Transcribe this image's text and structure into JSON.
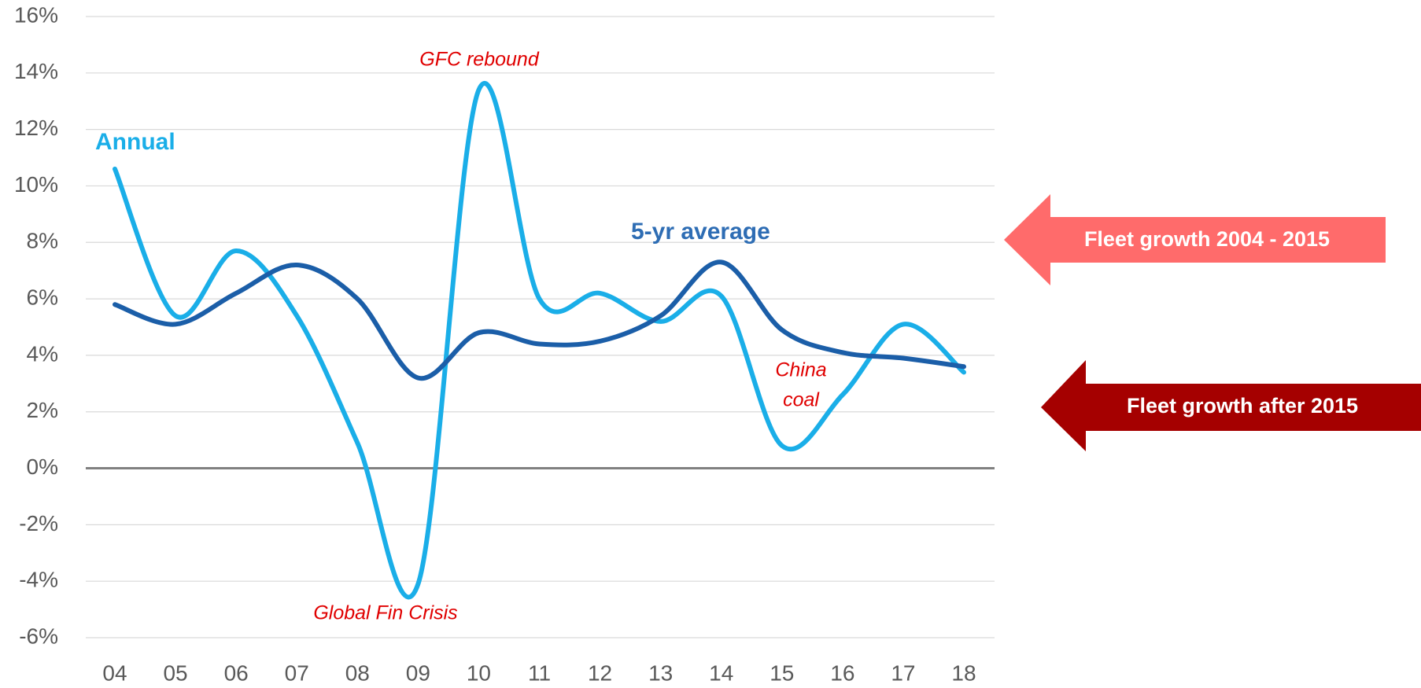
{
  "chart_data": {
    "type": "line",
    "categories": [
      "04",
      "05",
      "06",
      "07",
      "08",
      "09",
      "10",
      "11",
      "12",
      "13",
      "14",
      "15",
      "16",
      "17",
      "18"
    ],
    "series": [
      {
        "name": "Annual",
        "color": "#1aaee8",
        "values": [
          10.6,
          5.4,
          7.7,
          5.4,
          0.9,
          -4.1,
          13.4,
          6.0,
          6.2,
          5.2,
          6.1,
          0.8,
          2.6,
          5.1,
          3.4
        ]
      },
      {
        "name": "5-yr average",
        "color": "#1b5ea8",
        "values": [
          5.8,
          5.1,
          6.2,
          7.2,
          6.0,
          3.2,
          4.8,
          4.4,
          4.5,
          5.4,
          7.3,
          4.9,
          4.1,
          3.9,
          3.6
        ]
      }
    ],
    "ylim": [
      -6,
      16
    ],
    "yticks": [
      {
        "value": -6,
        "label": "-6%"
      },
      {
        "value": -4,
        "label": "-4%"
      },
      {
        "value": -2,
        "label": "-2%"
      },
      {
        "value": 0,
        "label": "0%"
      },
      {
        "value": 2,
        "label": "2%"
      },
      {
        "value": 4,
        "label": "4%"
      },
      {
        "value": 6,
        "label": "6%"
      },
      {
        "value": 8,
        "label": "8%"
      },
      {
        "value": 10,
        "label": "10%"
      },
      {
        "value": 12,
        "label": "12%"
      },
      {
        "value": 14,
        "label": "14%"
      },
      {
        "value": 16,
        "label": "16%"
      }
    ],
    "grid": true,
    "annotations": [
      "GFC rebound",
      "Global Fin Crisis",
      "China",
      "coal"
    ],
    "arrows": [
      "Fleet growth 2004 - 2015",
      "Fleet growth after 2015"
    ]
  }
}
